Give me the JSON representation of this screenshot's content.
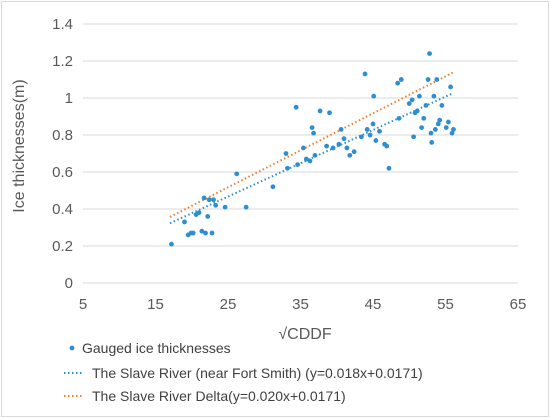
{
  "chart_data": {
    "type": "scatter",
    "title": "",
    "xlabel": "√CDDF",
    "ylabel": "Ice thicknesses(m)",
    "xlim": [
      5,
      65
    ],
    "ylim": [
      0,
      1.4
    ],
    "x_ticks": [
      "5",
      "15",
      "25",
      "35",
      "45",
      "55",
      "65"
    ],
    "y_ticks": [
      "0",
      "0.2",
      "0.4",
      "0.6",
      "0.8",
      "1",
      "1.2",
      "1.4"
    ],
    "grid": "horizontal",
    "legend_position": "bottom",
    "colors": {
      "points": "#2e8fd0",
      "near_fort_smith": "#2e8fd0",
      "delta": "#ed7d31",
      "grid": "#d9d9d9"
    },
    "series": [
      {
        "name": "Gauged ice thicknesses",
        "kind": "scatter",
        "points": [
          [
            17.2,
            0.21
          ],
          [
            19.0,
            0.33
          ],
          [
            19.5,
            0.26
          ],
          [
            19.9,
            0.27
          ],
          [
            20.2,
            0.27
          ],
          [
            20.6,
            0.37
          ],
          [
            21.0,
            0.38
          ],
          [
            21.4,
            0.28
          ],
          [
            21.7,
            0.46
          ],
          [
            21.9,
            0.27
          ],
          [
            22.2,
            0.36
          ],
          [
            22.4,
            0.45
          ],
          [
            22.8,
            0.27
          ],
          [
            23.0,
            0.45
          ],
          [
            23.3,
            0.42
          ],
          [
            24.6,
            0.41
          ],
          [
            26.2,
            0.59
          ],
          [
            27.5,
            0.41
          ],
          [
            31.2,
            0.52
          ],
          [
            33.0,
            0.7
          ],
          [
            33.2,
            0.62
          ],
          [
            34.4,
            0.95
          ],
          [
            34.6,
            0.64
          ],
          [
            35.4,
            0.73
          ],
          [
            35.8,
            0.67
          ],
          [
            36.3,
            0.66
          ],
          [
            36.6,
            0.84
          ],
          [
            36.8,
            0.81
          ],
          [
            37.0,
            0.69
          ],
          [
            37.7,
            0.93
          ],
          [
            38.6,
            0.74
          ],
          [
            39.0,
            0.92
          ],
          [
            39.5,
            0.73
          ],
          [
            40.3,
            0.75
          ],
          [
            40.6,
            0.83
          ],
          [
            41.0,
            0.78
          ],
          [
            41.4,
            0.73
          ],
          [
            41.8,
            0.69
          ],
          [
            42.4,
            0.71
          ],
          [
            43.4,
            0.79
          ],
          [
            43.9,
            1.13
          ],
          [
            44.2,
            0.83
          ],
          [
            44.6,
            0.8
          ],
          [
            45.0,
            0.86
          ],
          [
            45.1,
            1.01
          ],
          [
            45.4,
            0.77
          ],
          [
            45.9,
            0.82
          ],
          [
            46.6,
            0.75
          ],
          [
            46.9,
            0.74
          ],
          [
            47.2,
            0.62
          ],
          [
            48.4,
            1.08
          ],
          [
            48.6,
            0.89
          ],
          [
            48.9,
            1.1
          ],
          [
            50.0,
            0.97
          ],
          [
            50.4,
            0.99
          ],
          [
            50.6,
            0.79
          ],
          [
            50.8,
            0.92
          ],
          [
            51.1,
            0.93
          ],
          [
            51.4,
            1.01
          ],
          [
            51.7,
            0.84
          ],
          [
            52.0,
            0.89
          ],
          [
            52.3,
            0.96
          ],
          [
            52.6,
            1.1
          ],
          [
            52.8,
            1.24
          ],
          [
            53.0,
            0.81
          ],
          [
            53.1,
            0.76
          ],
          [
            53.4,
            1.01
          ],
          [
            53.6,
            0.83
          ],
          [
            53.8,
            1.1
          ],
          [
            54.0,
            0.86
          ],
          [
            54.2,
            0.88
          ],
          [
            54.5,
            0.96
          ],
          [
            55.1,
            0.84
          ],
          [
            55.4,
            0.87
          ],
          [
            55.7,
            1.06
          ],
          [
            55.9,
            0.81
          ],
          [
            56.1,
            0.83
          ]
        ]
      },
      {
        "name": "The Slave River (near Fort Smith) (y=0.018x+0.0171)",
        "kind": "trendline",
        "slope": 0.018,
        "intercept": 0.0171,
        "x_range": [
          17,
          56
        ]
      },
      {
        "name": "The Slave River Delta(y=0.020x+0.0171)",
        "kind": "trendline",
        "slope": 0.02,
        "intercept": 0.0171,
        "x_range": [
          17,
          56
        ]
      }
    ]
  }
}
